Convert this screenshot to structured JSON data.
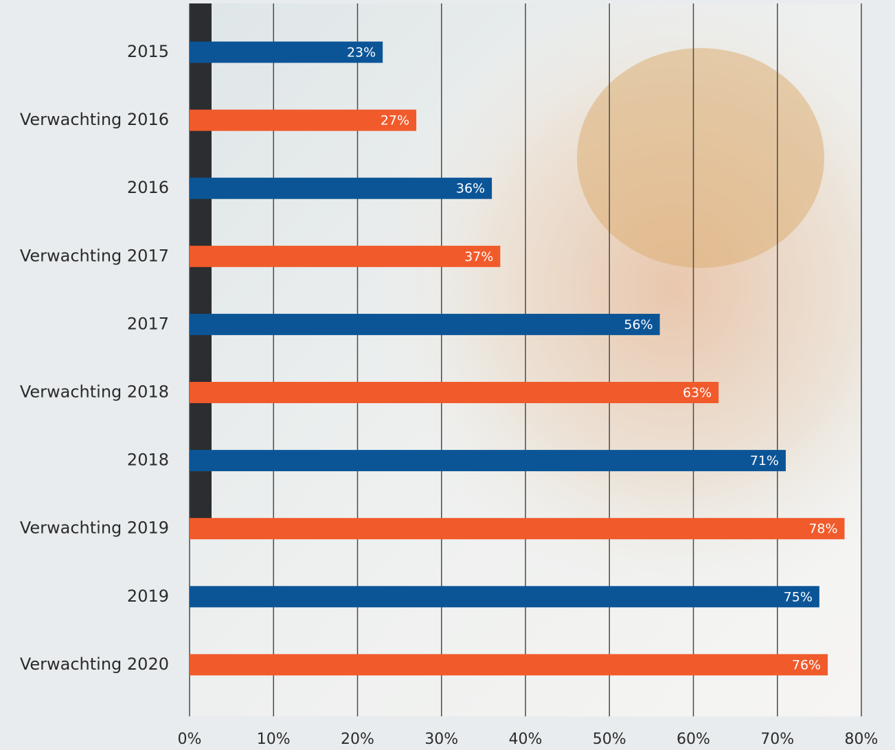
{
  "chart_data": {
    "type": "bar",
    "orientation": "horizontal",
    "categories": [
      "2015",
      "Verwachting 2016",
      "2016",
      "Verwachting 2017",
      "2017",
      "Verwachting 2018",
      "2018",
      "Verwachting 2019",
      "2019",
      "Verwachting 2020"
    ],
    "values": [
      23,
      27,
      36,
      37,
      56,
      63,
      71,
      78,
      75,
      76
    ],
    "value_labels": [
      "23%",
      "27%",
      "36%",
      "37%",
      "56%",
      "63%",
      "71%",
      "78%",
      "75%",
      "76%"
    ],
    "colors": [
      "#0b5597",
      "#f15a2b",
      "#0b5597",
      "#f15a2b",
      "#0b5597",
      "#f15a2b",
      "#0b5597",
      "#f15a2b",
      "#0b5597",
      "#f15a2b"
    ],
    "xlim": [
      0,
      80
    ],
    "xticks": [
      {
        "value": 0,
        "label": "0%"
      },
      {
        "value": 10,
        "label": "10%"
      },
      {
        "value": 20,
        "label": "20%"
      },
      {
        "value": 30,
        "label": "30%"
      },
      {
        "value": 40,
        "label": "40%"
      },
      {
        "value": 50,
        "label": "50%"
      },
      {
        "value": 60,
        "label": "60%"
      },
      {
        "value": 70,
        "label": "70%"
      },
      {
        "value": 80,
        "label": "80%"
      }
    ],
    "grid": true
  }
}
